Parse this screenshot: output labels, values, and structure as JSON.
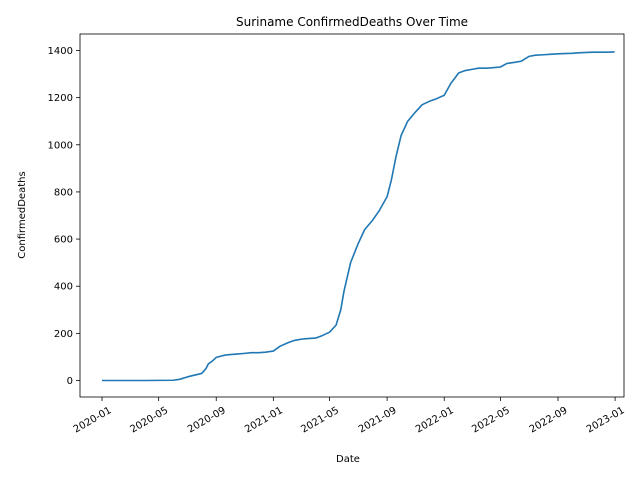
{
  "chart_data": {
    "type": "line",
    "title": "Suriname  ConfirmedDeaths Over Time",
    "xlabel": "Date",
    "ylabel": "ConfirmedDeaths",
    "x_ticks": [
      "2020-01",
      "2020-05",
      "2020-09",
      "2021-01",
      "2021-05",
      "2021-09",
      "2022-01",
      "2022-05",
      "2022-09",
      "2023-01"
    ],
    "y_ticks": [
      0,
      200,
      400,
      600,
      800,
      1000,
      1200,
      1400
    ],
    "xlim": [
      "2019-11-15",
      "2023-01-20"
    ],
    "ylim": [
      -70,
      1470
    ],
    "grid": false,
    "legend": "none",
    "color": "#1f77b4",
    "series": [
      {
        "x": [
          "2020-01-01",
          "2020-04-01",
          "2020-06-01",
          "2020-06-15",
          "2020-07-01",
          "2020-07-15",
          "2020-08-01",
          "2020-08-10",
          "2020-08-15",
          "2020-08-25",
          "2020-09-01",
          "2020-09-10",
          "2020-09-20",
          "2020-10-01",
          "2020-10-15",
          "2020-11-01",
          "2020-11-15",
          "2020-12-01",
          "2020-12-15",
          "2021-01-01",
          "2021-01-15",
          "2021-02-01",
          "2021-02-15",
          "2021-03-01",
          "2021-03-15",
          "2021-04-01",
          "2021-04-15",
          "2021-05-01",
          "2021-05-15",
          "2021-05-25",
          "2021-06-01",
          "2021-06-15",
          "2021-07-01",
          "2021-07-15",
          "2021-08-01",
          "2021-08-15",
          "2021-09-01",
          "2021-09-10",
          "2021-09-20",
          "2021-10-01",
          "2021-10-15",
          "2021-11-01",
          "2021-11-15",
          "2021-12-01",
          "2021-12-15",
          "2022-01-01",
          "2022-01-15",
          "2022-02-01",
          "2022-02-15",
          "2022-03-01",
          "2022-03-15",
          "2022-04-01",
          "2022-04-15",
          "2022-05-01",
          "2022-05-15",
          "2022-06-01",
          "2022-06-15",
          "2022-07-01",
          "2022-07-15",
          "2022-08-01",
          "2022-08-15",
          "2022-09-01",
          "2022-09-15",
          "2022-10-01",
          "2022-10-15",
          "2022-11-01",
          "2022-11-15",
          "2022-12-01",
          "2022-12-15",
          "2022-12-31"
        ],
        "y": [
          0,
          0,
          1,
          5,
          15,
          22,
          30,
          50,
          70,
          85,
          98,
          103,
          108,
          110,
          112,
          115,
          118,
          118,
          120,
          125,
          145,
          160,
          170,
          175,
          178,
          180,
          190,
          205,
          235,
          300,
          380,
          500,
          580,
          640,
          680,
          720,
          780,
          850,
          950,
          1040,
          1100,
          1140,
          1170,
          1185,
          1195,
          1210,
          1260,
          1305,
          1315,
          1320,
          1325,
          1325,
          1327,
          1330,
          1345,
          1350,
          1355,
          1375,
          1380,
          1382,
          1384,
          1386,
          1387,
          1388,
          1390,
          1392,
          1393,
          1393,
          1393,
          1394
        ]
      }
    ]
  }
}
